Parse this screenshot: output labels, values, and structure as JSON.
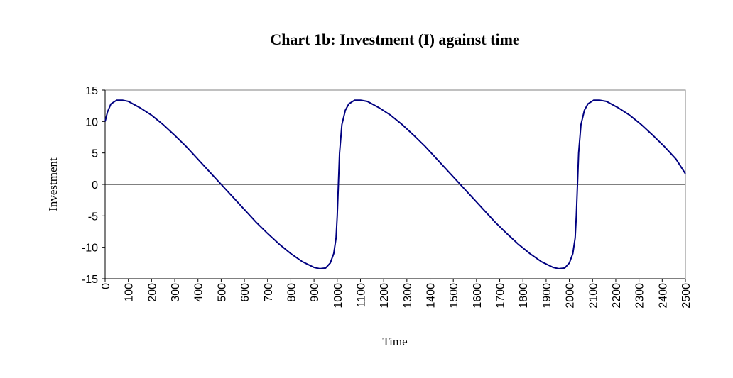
{
  "chart_data": {
    "type": "line",
    "title": "Chart 1b: Investment (I) against time",
    "x_label": "Time",
    "y_label": "Investment",
    "x": [
      0,
      10,
      25,
      50,
      75,
      100,
      150,
      200,
      250,
      300,
      350,
      400,
      450,
      500,
      550,
      600,
      650,
      700,
      750,
      800,
      850,
      900,
      925,
      950,
      970,
      985,
      995,
      1000,
      1005,
      1010,
      1020,
      1035,
      1050,
      1075,
      1100,
      1130,
      1180,
      1230,
      1280,
      1330,
      1380,
      1430,
      1480,
      1530,
      1580,
      1630,
      1680,
      1730,
      1780,
      1830,
      1880,
      1930,
      1955,
      1980,
      2000,
      2015,
      2025,
      2030,
      2035,
      2040,
      2050,
      2065,
      2080,
      2105,
      2130,
      2160,
      2210,
      2260,
      2310,
      2360,
      2410,
      2460,
      2500
    ],
    "series": [
      {
        "name": "Investment",
        "color": "#000080",
        "values": [
          10,
          11.5,
          12.8,
          13.4,
          13.4,
          13.2,
          12.2,
          11,
          9.5,
          7.8,
          6,
          4,
          2,
          0,
          -2,
          -4,
          -6,
          -7.8,
          -9.5,
          -11,
          -12.3,
          -13.2,
          -13.4,
          -13.3,
          -12.5,
          -11,
          -8.5,
          -5,
          0,
          5,
          9.5,
          11.8,
          12.8,
          13.4,
          13.4,
          13.2,
          12.2,
          11,
          9.5,
          7.8,
          6,
          4,
          2,
          0,
          -2,
          -4,
          -6,
          -7.8,
          -9.5,
          -11,
          -12.3,
          -13.2,
          -13.4,
          -13.3,
          -12.5,
          -11,
          -8.5,
          -5,
          0,
          5,
          9.5,
          11.8,
          12.8,
          13.4,
          13.4,
          13.2,
          12.2,
          11,
          9.5,
          7.8,
          6,
          4,
          1.7
        ]
      }
    ],
    "xlim": [
      0,
      2500
    ],
    "xticks": [
      0,
      100,
      200,
      300,
      400,
      500,
      600,
      700,
      800,
      900,
      1000,
      1100,
      1200,
      1300,
      1400,
      1500,
      1600,
      1700,
      1800,
      1900,
      2000,
      2100,
      2200,
      2300,
      2400,
      2500
    ],
    "ylim": [
      -15,
      15
    ],
    "yticks": [
      -15,
      -10,
      -5,
      0,
      5,
      10,
      15
    ]
  }
}
